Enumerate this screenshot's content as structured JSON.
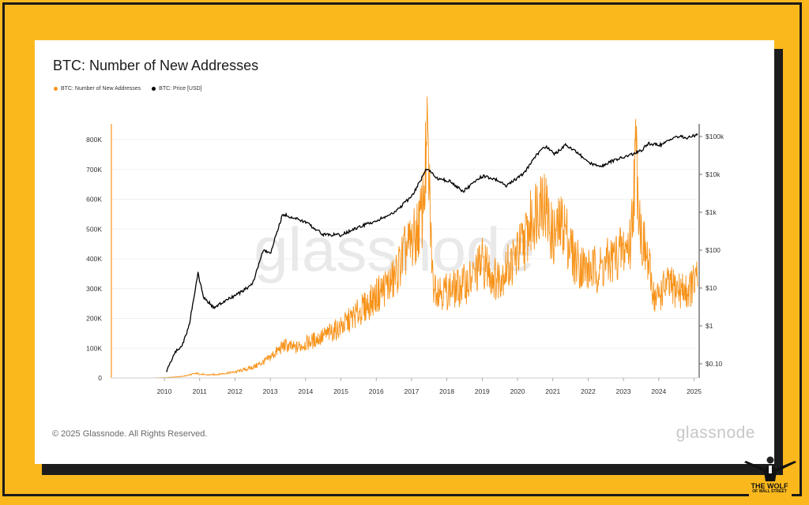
{
  "chart_data": {
    "type": "line",
    "title": "BTC: Number of New Addresses",
    "legend": [
      {
        "name": "BTC: Number of New Addresses",
        "color": "#f7931a"
      },
      {
        "name": "BTC: Price [USD]",
        "color": "#000000"
      }
    ],
    "legend_placement": "top-left",
    "grid": true,
    "x_ticks": [
      "2010",
      "2011",
      "2012",
      "2013",
      "2014",
      "2015",
      "2016",
      "2017",
      "2018",
      "2019",
      "2020",
      "2021",
      "2022",
      "2023",
      "2024",
      "2025"
    ],
    "x_range": [
      2009.0,
      2025.6
    ],
    "y_left": {
      "ticks": [
        "0",
        "100K",
        "200K",
        "300K",
        "400K",
        "500K",
        "600K",
        "700K",
        "800K"
      ],
      "range": [
        0,
        800000
      ]
    },
    "y_right": {
      "scale": "log",
      "ticks": [
        "$0.10",
        "$1",
        "$10",
        "$100",
        "$1k",
        "$10k",
        "$100k"
      ],
      "range": [
        0.1,
        100000
      ]
    },
    "series": [
      {
        "name": "BTC: Number of New Addresses",
        "axis": "left",
        "x": [
          2009.0,
          2010.0,
          2010.5,
          2011.0,
          2011.4,
          2011.7,
          2012.0,
          2012.5,
          2013.0,
          2013.4,
          2013.9,
          2014.2,
          2014.6,
          2015.0,
          2015.5,
          2015.9,
          2016.3,
          2016.7,
          2017.0,
          2017.3,
          2017.6,
          2017.8,
          2017.95,
          2018.1,
          2018.4,
          2018.8,
          2019.2,
          2019.5,
          2019.9,
          2020.3,
          2020.7,
          2021.0,
          2021.2,
          2021.5,
          2021.8,
          2022.1,
          2022.5,
          2022.9,
          2023.2,
          2023.5,
          2023.7,
          2023.85,
          2024.0,
          2024.2,
          2024.4,
          2024.7,
          2025.0,
          2025.3,
          2025.6
        ],
        "values": [
          0,
          0,
          1000,
          5000,
          15000,
          10000,
          12000,
          20000,
          35000,
          60000,
          110000,
          100000,
          120000,
          140000,
          170000,
          210000,
          250000,
          300000,
          330000,
          420000,
          470000,
          550000,
          800000,
          320000,
          290000,
          300000,
          330000,
          390000,
          330000,
          380000,
          460000,
          560000,
          620000,
          470000,
          520000,
          400000,
          360000,
          370000,
          400000,
          430000,
          450000,
          760000,
          480000,
          380000,
          260000,
          310000,
          300000,
          290000,
          330000
        ]
      },
      {
        "name": "BTC: Price [USD]",
        "axis": "right",
        "x": [
          2010.55,
          2010.8,
          2011.0,
          2011.2,
          2011.45,
          2011.6,
          2011.9,
          2012.3,
          2012.7,
          2013.0,
          2013.3,
          2013.5,
          2013.85,
          2014.0,
          2014.5,
          2015.0,
          2015.5,
          2016.0,
          2016.5,
          2017.0,
          2017.5,
          2017.95,
          2018.2,
          2018.6,
          2018.95,
          2019.5,
          2019.9,
          2020.2,
          2020.7,
          2021.0,
          2021.3,
          2021.55,
          2021.85,
          2022.2,
          2022.5,
          2022.9,
          2023.2,
          2023.6,
          2024.0,
          2024.2,
          2024.6,
          2024.9,
          2025.1,
          2025.3,
          2025.6
        ],
        "values": [
          0.06,
          0.2,
          0.3,
          1,
          25,
          6,
          3,
          5,
          8,
          13,
          100,
          80,
          900,
          800,
          550,
          260,
          250,
          400,
          600,
          950,
          2600,
          15000,
          8000,
          6500,
          3500,
          9000,
          7200,
          5000,
          11000,
          30000,
          55000,
          34000,
          60000,
          38000,
          20000,
          17000,
          23000,
          30000,
          42000,
          65000,
          60000,
          95000,
          100000,
          90000,
          115000
        ]
      }
    ]
  },
  "footer": {
    "copyright": "© 2025 Glassnode. All Rights Reserved.",
    "brand": "glassnode"
  },
  "watermark": "glassnode",
  "badge": {
    "line1": "THE WOLF",
    "line2": "OF WALL STREET"
  }
}
